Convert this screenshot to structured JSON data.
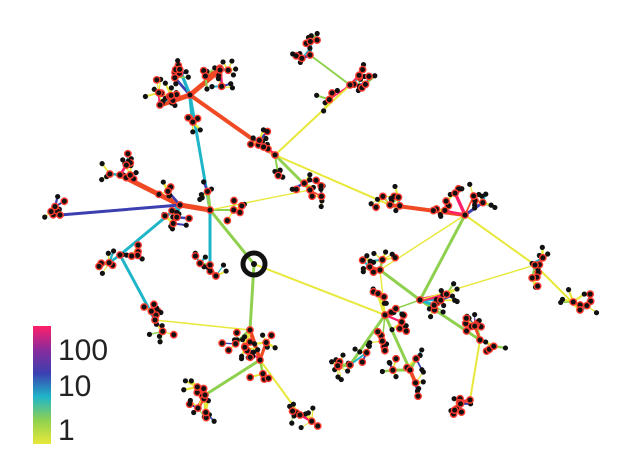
{
  "diagram": {
    "type": "network-tree",
    "root_marker": "ring",
    "colors": {
      "node": "#111111",
      "node_ring": "#ff3b30",
      "weight_low": "#e8e83a",
      "weight_mid_low": "#8fd14f",
      "weight_mid": "#1fb5c9",
      "weight_mid_high": "#3b3fb0",
      "weight_high": "#ff1f6a",
      "hub_edge": "#f04a24"
    }
  },
  "colorbar": {
    "ticks": [
      "100",
      "10",
      "1"
    ],
    "gradient": [
      "#ff1f6a",
      "#8a2b9b",
      "#3b3fb0",
      "#1fb5c9",
      "#8fd14f",
      "#e8e83a"
    ]
  }
}
